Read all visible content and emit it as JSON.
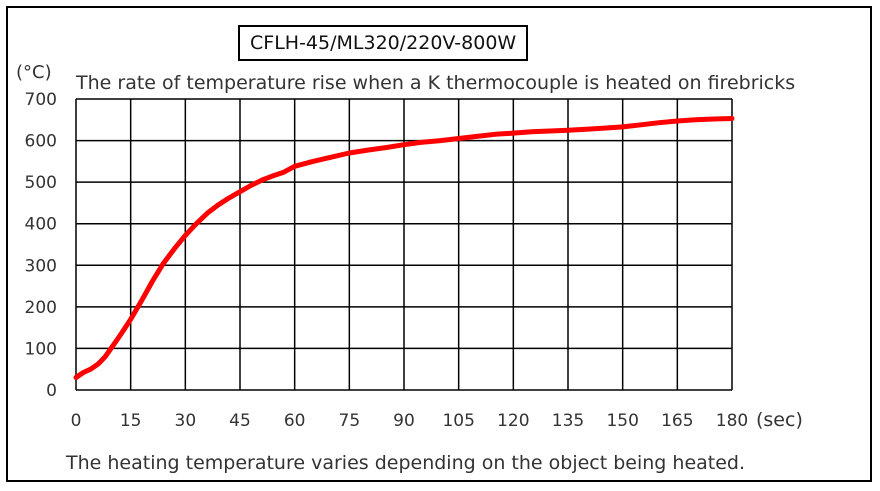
{
  "chart_data": {
    "type": "line",
    "model_label": "CFLH-45/ML320/220V-800W",
    "title": "The rate of temperature rise when a K thermocouple is heated on firebricks",
    "y_unit": "(°C)",
    "x_unit": "(sec)",
    "note": "The heating temperature varies depending on the object being heated.",
    "xlim": [
      0,
      180
    ],
    "ylim": [
      0,
      700
    ],
    "x_ticks": [
      0,
      15,
      30,
      45,
      60,
      75,
      90,
      105,
      120,
      135,
      150,
      165,
      180
    ],
    "y_ticks": [
      0,
      100,
      200,
      300,
      400,
      500,
      600,
      700
    ],
    "grid": true,
    "series": [
      {
        "color": "#ff0000",
        "x": [
          0,
          2,
          4,
          6,
          8,
          10,
          12,
          15,
          18,
          21,
          24,
          27,
          30,
          33,
          36,
          39,
          42,
          45,
          48,
          51,
          54,
          57,
          60,
          65,
          70,
          75,
          80,
          85,
          90,
          95,
          100,
          105,
          110,
          115,
          120,
          125,
          130,
          135,
          140,
          145,
          150,
          155,
          160,
          165,
          170,
          175,
          180
        ],
        "y": [
          30,
          42,
          50,
          62,
          80,
          105,
          130,
          170,
          215,
          262,
          305,
          340,
          372,
          400,
          425,
          445,
          462,
          477,
          492,
          505,
          515,
          524,
          538,
          550,
          560,
          570,
          577,
          583,
          590,
          596,
          600,
          605,
          610,
          615,
          618,
          621,
          623,
          625,
          627,
          630,
          633,
          638,
          643,
          647,
          650,
          652,
          653
        ]
      }
    ]
  }
}
